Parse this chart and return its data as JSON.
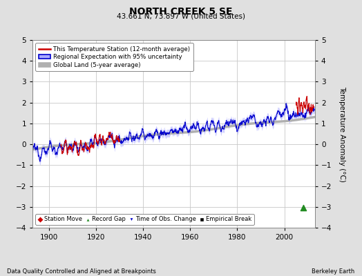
{
  "title": "NORTH CREEK 5 SE",
  "subtitle": "43.661 N, 73.897 W (United States)",
  "ylabel": "Temperature Anomaly (°C)",
  "xlabel_bottom": "Data Quality Controlled and Aligned at Breakpoints",
  "xlabel_right": "Berkeley Earth",
  "ylim": [
    -4,
    5
  ],
  "xlim": [
    1893,
    2013
  ],
  "xticks": [
    1900,
    1920,
    1940,
    1960,
    1980,
    2000
  ],
  "yticks": [
    -4,
    -3,
    -2,
    -1,
    0,
    1,
    2,
    3,
    4,
    5
  ],
  "bg_color": "#e0e0e0",
  "plot_bg_color": "#ffffff",
  "grid_color": "#c8c8c8",
  "legend_labels": [
    "This Temperature Station (12-month average)",
    "Regional Expectation with 95% uncertainty",
    "Global Land (5-year average)"
  ],
  "station_move_color": "#cc0000",
  "record_gap_color": "#228B22",
  "obs_change_color": "#0000cc",
  "empirical_break_color": "#000000",
  "regional_band_color": "#aaaaff",
  "regional_line_color": "#0000cc",
  "station_line_color": "#cc0000",
  "global_land_color": "#b0b0b0",
  "record_gap_x": 2008,
  "record_gap_y": -3.05,
  "seed": 12345
}
